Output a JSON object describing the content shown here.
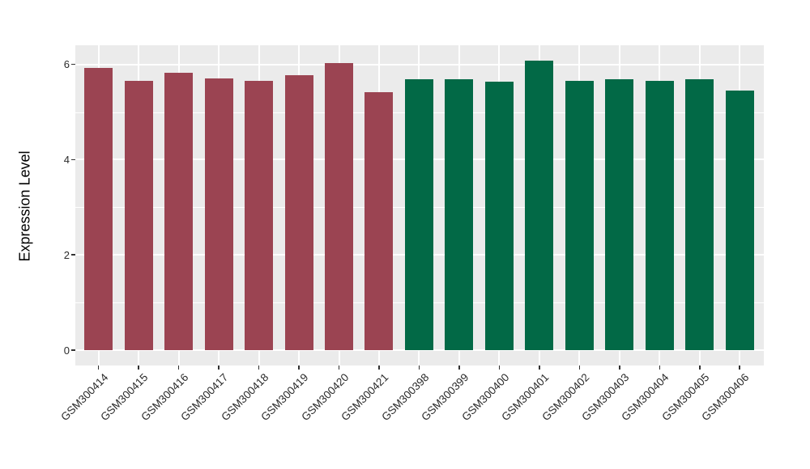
{
  "figure": {
    "background_color": "#FFFFFF",
    "panel_background_color": "#EBEBEB",
    "gridline_color": "#FFFFFF",
    "tick_mark_color": "#333333",
    "tick_label_color": "#2B2B2B",
    "axis_title_color": "#000000"
  },
  "chart_data": {
    "type": "bar",
    "title": "",
    "xlabel": "",
    "ylabel": "Expression Level",
    "grid": true,
    "legend": "none",
    "ylim": [
      -0.32,
      6.4
    ],
    "y_major_ticks": [
      0,
      2,
      4,
      6
    ],
    "y_minor_ticks": [
      1,
      3,
      5
    ],
    "y_tick_labels": [
      "0",
      "2",
      "4",
      "6"
    ],
    "x_tick_angle_deg": 45,
    "categories": [
      "GSM300414",
      "GSM300415",
      "GSM300416",
      "GSM300417",
      "GSM300418",
      "GSM300419",
      "GSM300420",
      "GSM300421",
      "GSM300398",
      "GSM300399",
      "GSM300400",
      "GSM300401",
      "GSM300402",
      "GSM300403",
      "GSM300404",
      "GSM300405",
      "GSM300406"
    ],
    "bars": [
      {
        "label": "GSM300414",
        "value": 5.92,
        "color": "#9B4452"
      },
      {
        "label": "GSM300415",
        "value": 5.65,
        "color": "#9B4452"
      },
      {
        "label": "GSM300416",
        "value": 5.82,
        "color": "#9B4452"
      },
      {
        "label": "GSM300417",
        "value": 5.7,
        "color": "#9B4452"
      },
      {
        "label": "GSM300418",
        "value": 5.65,
        "color": "#9B4452"
      },
      {
        "label": "GSM300419",
        "value": 5.77,
        "color": "#9B4452"
      },
      {
        "label": "GSM300420",
        "value": 6.03,
        "color": "#9B4452"
      },
      {
        "label": "GSM300421",
        "value": 5.42,
        "color": "#9B4452"
      },
      {
        "label": "GSM300398",
        "value": 5.69,
        "color": "#026946"
      },
      {
        "label": "GSM300399",
        "value": 5.68,
        "color": "#026946"
      },
      {
        "label": "GSM300400",
        "value": 5.64,
        "color": "#026946"
      },
      {
        "label": "GSM300401",
        "value": 6.08,
        "color": "#026946"
      },
      {
        "label": "GSM300402",
        "value": 5.65,
        "color": "#026946"
      },
      {
        "label": "GSM300403",
        "value": 5.69,
        "color": "#026946"
      },
      {
        "label": "GSM300404",
        "value": 5.65,
        "color": "#026946"
      },
      {
        "label": "GSM300405",
        "value": 5.69,
        "color": "#026946"
      },
      {
        "label": "GSM300406",
        "value": 5.45,
        "color": "#026946"
      }
    ],
    "color_groups": [
      {
        "color": "#9B4452",
        "first_label": "GSM300414",
        "last_label": "GSM300421",
        "count": 8
      },
      {
        "color": "#026946",
        "first_label": "GSM300398",
        "last_label": "GSM300406",
        "count": 9
      }
    ]
  }
}
